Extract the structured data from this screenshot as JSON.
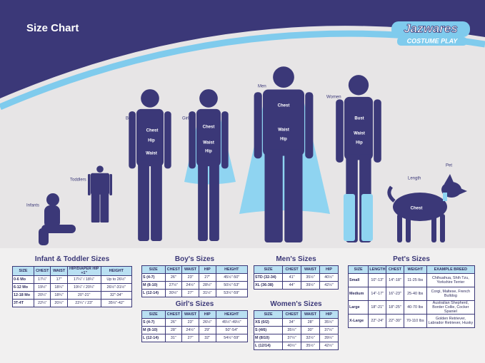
{
  "header": {
    "title": "Size Chart",
    "logo": {
      "brand": "Jazwares",
      "sub": "COSTUME PLAY"
    }
  },
  "figures": [
    {
      "label": "Infants",
      "measures": []
    },
    {
      "label": "Toddlers",
      "measures": []
    },
    {
      "label": "Boys",
      "measures": [
        "Chest",
        "Hip",
        "Waist"
      ]
    },
    {
      "label": "Girls",
      "measures": [
        "Chest",
        "Waist",
        "Hip"
      ]
    },
    {
      "label": "Men",
      "measures": [
        "Chest",
        "Waist",
        "Hip"
      ]
    },
    {
      "label": "Women",
      "measures": [
        "Bust",
        "Waist",
        "Hip"
      ]
    },
    {
      "label": "Pet",
      "measures": [
        "Length",
        "Chest"
      ]
    }
  ],
  "tables": [
    {
      "title": "Infant & Toddler Sizes",
      "headers": [
        "SIZE",
        "CHEST",
        "WAIST",
        "HIP/DIAPER HIP +1\"",
        "HEIGHT"
      ],
      "rows": [
        [
          "0-6 Mo",
          "17¼\"",
          "17\"",
          "17¼\" / 18¼\"",
          "Up to 26½\""
        ],
        [
          "6-12 Mo",
          "19½\"",
          "18¼\"",
          "19¼\" / 20¼\"",
          "26½\"-31½\""
        ],
        [
          "12-18 Mo",
          "20¼\"",
          "18¾\"",
          "20\"-21\"",
          "32\"-34\""
        ],
        [
          "3T-4T",
          "22¼\"",
          "20½\"",
          "22¼\" / 23\"",
          "35½\"-42\""
        ]
      ]
    },
    {
      "title": "Boy's Sizes",
      "headers": [
        "SIZE",
        "CHEST",
        "WAIST",
        "HIP",
        "HEIGHT"
      ],
      "rows": [
        [
          "S (4-7)",
          "26\"",
          "23\"",
          "27\"",
          "45½\"-50\""
        ],
        [
          "M (8-10)",
          "27½\"",
          "24½\"",
          "28½\"",
          "50½\"-53\""
        ],
        [
          "L (12-14)",
          "30½\"",
          "27\"",
          "31½\"",
          "53½\"-59\""
        ]
      ]
    },
    {
      "title": "Girl's Sizes",
      "headers": [
        "SIZE",
        "CHEST",
        "WAIST",
        "HIP",
        "HEIGHT"
      ],
      "rows": [
        [
          "S (4-7)",
          "26\"",
          "23\"",
          "26½\"",
          "45½\"-49½\""
        ],
        [
          "M (8-10)",
          "28\"",
          "24½\"",
          "29\"",
          "50\"-54\""
        ],
        [
          "L (12-14)",
          "31\"",
          "27\"",
          "32\"",
          "54½\"-59\""
        ]
      ]
    },
    {
      "title": "Men's Sizes",
      "headers": [
        "SIZE",
        "CHEST",
        "WAIST",
        "HIP"
      ],
      "rows": [
        [
          "STD (32-34)",
          "41\"",
          "35½\"",
          "40½\""
        ],
        [
          "XL (36-38)",
          "44\"",
          "39½\"",
          "42½\""
        ]
      ]
    },
    {
      "title": "Women's Sizes",
      "headers": [
        "SIZE",
        "CHEST",
        "WAIST",
        "HIP"
      ],
      "rows": [
        [
          "XS (0/2)",
          "34\"",
          "28\"",
          "35½\""
        ],
        [
          "S (4/6)",
          "35½\"",
          "30\"",
          "37½\""
        ],
        [
          "M (8/10)",
          "37½\"",
          "32½\"",
          "39½\""
        ],
        [
          "L (12/14)",
          "40½\"",
          "35½\"",
          "42½\""
        ]
      ]
    },
    {
      "title": "Pet's Sizes",
      "headers": [
        "SIZE",
        "LENGTH",
        "CHEST",
        "WEIGHT",
        "EXAMPLE BREED"
      ],
      "rows": [
        [
          "Small",
          "10\"-13\"",
          "14\"-18\"",
          "11-25 lbs",
          "Chihuahua, Shih Tzu, Yorkshire Terrier"
        ],
        [
          "Medium",
          "14\"-17\"",
          "16\"-23\"",
          "25-40 lbs",
          "Corgi, Maltese, French Bulldog"
        ],
        [
          "Large",
          "18\"-21\"",
          "18\"-25\"",
          "40-70 lbs",
          "Australian Shepherd, Border Collie, Cocker Spaniel"
        ],
        [
          "X-Large",
          "22\"-24\"",
          "22\"-30\"",
          "70-110 lbs",
          "Golden Retriever, Labrador Retriever, Husky"
        ]
      ]
    }
  ]
}
